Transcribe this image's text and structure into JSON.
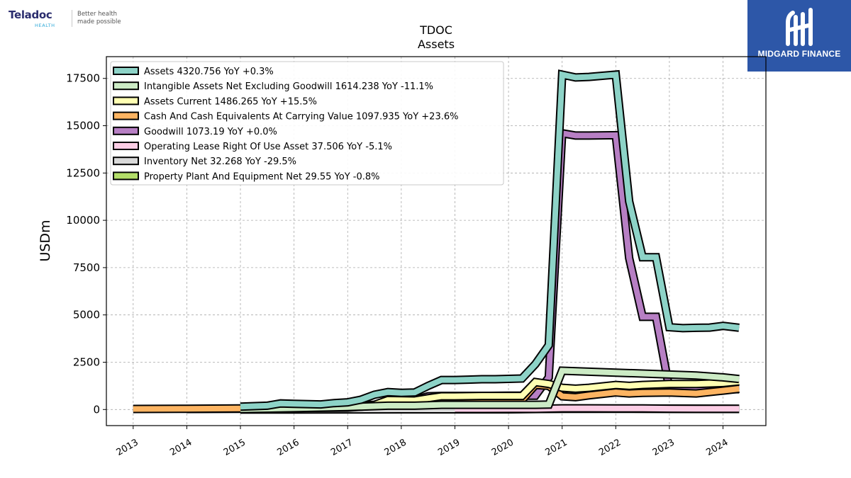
{
  "brand": {
    "name": "Teladoc",
    "sub": "HEALTH",
    "tagline_1": "Better health",
    "tagline_2": "made possible"
  },
  "watermark": {
    "label": "MIDGARD FINANCE",
    "color": "#2d57a8"
  },
  "chart_data": {
    "type": "line",
    "title": "TDOC",
    "subtitle": "Assets",
    "xlabel": "",
    "ylabel": "USDm",
    "xlim": [
      2012.5,
      2024.8
    ],
    "ylim": [
      -850,
      18650
    ],
    "yticks": [
      0,
      2500,
      5000,
      7500,
      10000,
      12500,
      15000,
      17500
    ],
    "xticks": [
      2013,
      2014,
      2015,
      2016,
      2017,
      2018,
      2019,
      2020,
      2021,
      2022,
      2023,
      2024
    ],
    "grid": true,
    "legend_position": "top-left",
    "series": [
      {
        "name": "Assets  4320.756 YoY +0.3%",
        "color": "#8dd3c7",
        "x": [
          2015.0,
          2015.5,
          2015.75,
          2016.0,
          2016.5,
          2016.75,
          2017.0,
          2017.25,
          2017.5,
          2017.75,
          2018.0,
          2018.25,
          2018.5,
          2018.75,
          2019.0,
          2019.25,
          2019.5,
          2019.75,
          2020.0,
          2020.25,
          2020.5,
          2020.75,
          2021.0,
          2021.25,
          2021.5,
          2021.75,
          2022.0,
          2022.25,
          2022.5,
          2022.75,
          2023.0,
          2023.25,
          2023.5,
          2023.75,
          2024.0,
          2024.3
        ],
        "values": [
          150,
          200,
          320,
          300,
          270,
          340,
          380,
          520,
          780,
          920,
          880,
          900,
          1250,
          1560,
          1560,
          1580,
          1600,
          1600,
          1620,
          1640,
          2400,
          3400,
          17700,
          17550,
          17580,
          17640,
          17700,
          11000,
          8050,
          8050,
          4350,
          4300,
          4320,
          4330,
          4420,
          4321
        ]
      },
      {
        "name": "Intangible Assets Net Excluding Goodwill  1614.238 YoY -11.1%",
        "color": "#ccebc5",
        "x": [
          2015.0,
          2016.0,
          2017.0,
          2017.75,
          2018.25,
          2018.75,
          2019.5,
          2020.0,
          2020.5,
          2020.75,
          2021.0,
          2021.5,
          2022.0,
          2022.5,
          2023.0,
          2023.5,
          2024.0,
          2024.3
        ],
        "values": [
          20,
          70,
          130,
          200,
          200,
          250,
          250,
          250,
          250,
          260,
          2050,
          2000,
          1950,
          1900,
          1850,
          1800,
          1700,
          1614
        ]
      },
      {
        "name": "Assets Current  1486.265 YoY +15.5%",
        "color": "#ffffb3",
        "x": [
          2015.0,
          2016.0,
          2017.0,
          2017.5,
          2017.75,
          2018.25,
          2018.5,
          2018.75,
          2019.0,
          2019.5,
          2020.0,
          2020.25,
          2020.5,
          2020.75,
          2021.0,
          2021.25,
          2021.5,
          2022.0,
          2022.25,
          2022.5,
          2023.0,
          2023.5,
          2024.0,
          2024.3
        ],
        "values": [
          100,
          120,
          140,
          250,
          500,
          480,
          600,
          700,
          700,
          720,
          720,
          720,
          1450,
          1350,
          1150,
          1100,
          1150,
          1300,
          1250,
          1300,
          1350,
          1350,
          1400,
          1486
        ]
      },
      {
        "name": "Cash And Cash Equivalents At Carrying Value  1097.935 YoY +23.6%",
        "color": "#fdb462",
        "x": [
          2013.0,
          2014.0,
          2015.0,
          2016.0,
          2017.0,
          2017.5,
          2017.75,
          2018.25,
          2018.75,
          2019.0,
          2019.5,
          2020.0,
          2020.25,
          2020.5,
          2020.75,
          2021.0,
          2021.25,
          2021.5,
          2022.0,
          2022.25,
          2022.5,
          2023.0,
          2023.5,
          2024.0,
          2024.3
        ],
        "values": [
          30,
          40,
          60,
          80,
          100,
          200,
          400,
          380,
          400,
          450,
          480,
          500,
          500,
          1300,
          1250,
          700,
          650,
          750,
          900,
          850,
          880,
          900,
          850,
          1000,
          1098
        ]
      },
      {
        "name": "Goodwill  1073.19 YoY +0.0%",
        "color": "#b77fc4",
        "x": [
          2014.0,
          2015.0,
          2016.0,
          2017.0,
          2017.5,
          2017.75,
          2018.25,
          2018.5,
          2018.75,
          2019.0,
          2019.5,
          2020.0,
          2020.25,
          2020.5,
          2020.75,
          2021.0,
          2021.25,
          2021.5,
          2022.0,
          2022.25,
          2022.5,
          2022.75,
          2023.0,
          2023.5,
          2024.0,
          2024.3
        ],
        "values": [
          30,
          40,
          120,
          180,
          190,
          500,
          500,
          700,
          720,
          720,
          720,
          730,
          730,
          730,
          1700,
          14600,
          14480,
          14480,
          14500,
          8000,
          4900,
          4900,
          1073,
          1073,
          1073,
          1073
        ]
      },
      {
        "name": "Operating Lease Right Of Use Asset  37.506 YoY -5.1%",
        "color": "#fccde5",
        "x": [
          2019.0,
          2019.5,
          2020.0,
          2020.5,
          2021.0,
          2021.5,
          2022.0,
          2022.5,
          2023.0,
          2023.5,
          2024.0,
          2024.3
        ],
        "values": [
          30,
          30,
          35,
          35,
          65,
          65,
          60,
          55,
          45,
          42,
          40,
          37.5
        ]
      },
      {
        "name": "Inventory Net  32.268 YoY -29.5%",
        "color": "#d9d9d9",
        "x": [
          2015.0,
          2016.0,
          2017.0,
          2018.0,
          2019.0,
          2020.0,
          2021.0,
          2022.0,
          2023.0,
          2024.0,
          2024.3
        ],
        "values": [
          5,
          5,
          8,
          10,
          10,
          10,
          45,
          50,
          45,
          40,
          32.3
        ]
      },
      {
        "name": "Property Plant And Equipment Net  29.55 YoY -0.8%",
        "color": "#b3de69",
        "x": [
          2015.0,
          2016.0,
          2017.0,
          2018.0,
          2019.0,
          2020.0,
          2021.0,
          2022.0,
          2023.0,
          2024.0,
          2024.3
        ],
        "values": [
          8,
          10,
          12,
          15,
          20,
          25,
          40,
          40,
          35,
          30,
          29.55
        ]
      }
    ]
  }
}
